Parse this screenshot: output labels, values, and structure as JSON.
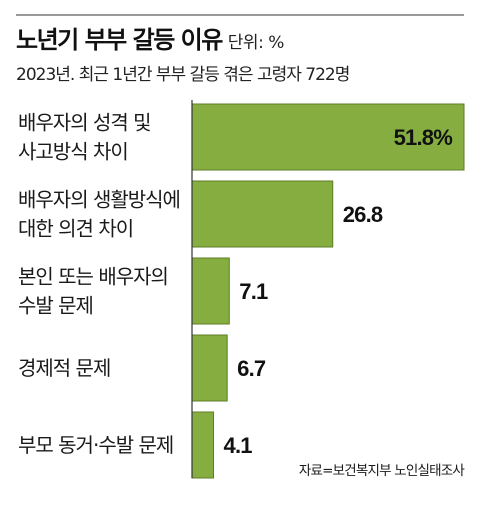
{
  "header": {
    "title": "노년기 부부 갈등 이유",
    "unit": "단위: %",
    "subtitle": "2023년. 최근 1년간 부부 갈등 겪은 고령자 722명"
  },
  "source": "자료=보건복지부 노인실태조사",
  "colors": {
    "bar_fill": "#86ad3f",
    "bar_stroke": "#5c7e24",
    "axis": "#333333"
  },
  "chart_data": {
    "type": "bar",
    "orientation": "horizontal",
    "categories": [
      [
        "배우자의 성격 및",
        "사고방식 차이"
      ],
      [
        "배우자의 생활방식에",
        "대한 의견 차이"
      ],
      [
        "본인 또는 배우자의",
        "수발 문제"
      ],
      [
        "경제적 문제"
      ],
      [
        "부모 동거·수발 문제"
      ]
    ],
    "values": [
      51.8,
      26.8,
      7.1,
      6.7,
      4.1
    ],
    "value_labels": [
      "51.8%",
      "26.8",
      "7.1",
      "6.7",
      "4.1"
    ],
    "title": "노년기 부부 갈등 이유",
    "unit": "단위: %",
    "grid": false
  }
}
